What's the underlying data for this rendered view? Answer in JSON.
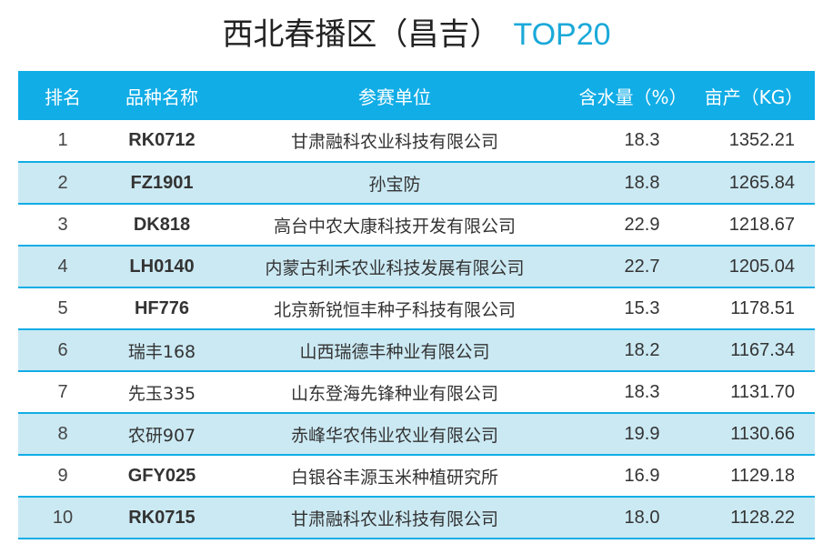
{
  "title": {
    "main": "西北春播区（昌吉）",
    "highlight": "TOP20"
  },
  "table": {
    "headers": {
      "rank": "排名",
      "variety": "品种名称",
      "unit": "参赛单位",
      "moisture": "含水量（%）",
      "yield": "亩产（KG）"
    },
    "rows": [
      {
        "rank": "1",
        "variety": "RK0712",
        "unit": "甘肃融科农业科技有限公司",
        "moisture": "18.3",
        "yield": "1352.21"
      },
      {
        "rank": "2",
        "variety": "FZ1901",
        "unit": "孙宝防",
        "moisture": "18.8",
        "yield": "1265.84"
      },
      {
        "rank": "3",
        "variety": "DK818",
        "unit": "高台中农大康科技开发有限公司",
        "moisture": "22.9",
        "yield": "1218.67"
      },
      {
        "rank": "4",
        "variety": "LH0140",
        "unit": "内蒙古利禾农业科技发展有限公司",
        "moisture": "22.7",
        "yield": "1205.04"
      },
      {
        "rank": "5",
        "variety": "HF776",
        "unit": "北京新锐恒丰种子科技有限公司",
        "moisture": "15.3",
        "yield": "1178.51"
      },
      {
        "rank": "6",
        "variety": "瑞丰168",
        "unit": "山西瑞德丰种业有限公司",
        "moisture": "18.2",
        "yield": "1167.34"
      },
      {
        "rank": "7",
        "variety": "先玉335",
        "unit": "山东登海先锋种业有限公司",
        "moisture": "18.3",
        "yield": "1131.70"
      },
      {
        "rank": "8",
        "variety": "农研907",
        "unit": "赤峰华农伟业农业有限公司",
        "moisture": "19.9",
        "yield": "1130.66"
      },
      {
        "rank": "9",
        "variety": "GFY025",
        "unit": "白银谷丰源玉米种植研究所",
        "moisture": "16.9",
        "yield": "1129.18"
      },
      {
        "rank": "10",
        "variety": "RK0715",
        "unit": "甘肃融科农业科技有限公司",
        "moisture": "18.0",
        "yield": "1128.22"
      }
    ]
  },
  "colors": {
    "header_bg": "#11ade6",
    "stripe_bg": "#cbe9f3",
    "title_accent": "#1aa9d9"
  }
}
